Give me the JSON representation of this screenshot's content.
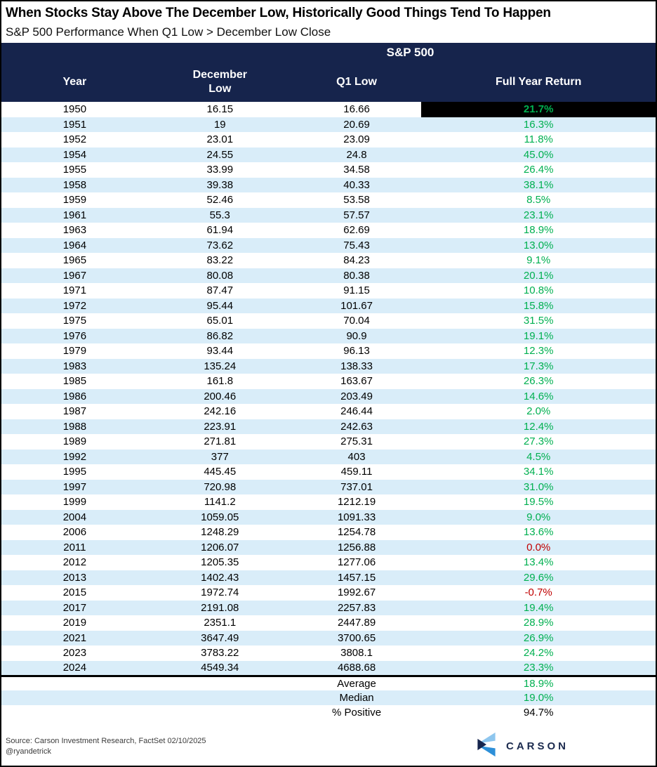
{
  "title": "When Stocks Stay Above The December Low, Historically Good Things Tend To Happen",
  "subtitle": "S&P 500 Performance When Q1 Low > December Low Close",
  "chart_data": {
    "type": "table",
    "group_header": "S&P 500",
    "columns": [
      "Year",
      "December\nLow",
      "Q1 Low",
      "Full Year Return"
    ],
    "rows": [
      {
        "year": "1950",
        "december_low": "16.15",
        "q1_low": "16.66",
        "full_year_return": "21.7%",
        "color": "green",
        "highlight": true
      },
      {
        "year": "1951",
        "december_low": "19",
        "q1_low": "20.69",
        "full_year_return": "16.3%",
        "color": "green"
      },
      {
        "year": "1952",
        "december_low": "23.01",
        "q1_low": "23.09",
        "full_year_return": "11.8%",
        "color": "green"
      },
      {
        "year": "1954",
        "december_low": "24.55",
        "q1_low": "24.8",
        "full_year_return": "45.0%",
        "color": "green"
      },
      {
        "year": "1955",
        "december_low": "33.99",
        "q1_low": "34.58",
        "full_year_return": "26.4%",
        "color": "green"
      },
      {
        "year": "1958",
        "december_low": "39.38",
        "q1_low": "40.33",
        "full_year_return": "38.1%",
        "color": "green"
      },
      {
        "year": "1959",
        "december_low": "52.46",
        "q1_low": "53.58",
        "full_year_return": "8.5%",
        "color": "green"
      },
      {
        "year": "1961",
        "december_low": "55.3",
        "q1_low": "57.57",
        "full_year_return": "23.1%",
        "color": "green"
      },
      {
        "year": "1963",
        "december_low": "61.94",
        "q1_low": "62.69",
        "full_year_return": "18.9%",
        "color": "green"
      },
      {
        "year": "1964",
        "december_low": "73.62",
        "q1_low": "75.43",
        "full_year_return": "13.0%",
        "color": "green"
      },
      {
        "year": "1965",
        "december_low": "83.22",
        "q1_low": "84.23",
        "full_year_return": "9.1%",
        "color": "green"
      },
      {
        "year": "1967",
        "december_low": "80.08",
        "q1_low": "80.38",
        "full_year_return": "20.1%",
        "color": "green"
      },
      {
        "year": "1971",
        "december_low": "87.47",
        "q1_low": "91.15",
        "full_year_return": "10.8%",
        "color": "green"
      },
      {
        "year": "1972",
        "december_low": "95.44",
        "q1_low": "101.67",
        "full_year_return": "15.8%",
        "color": "green"
      },
      {
        "year": "1975",
        "december_low": "65.01",
        "q1_low": "70.04",
        "full_year_return": "31.5%",
        "color": "green"
      },
      {
        "year": "1976",
        "december_low": "86.82",
        "q1_low": "90.9",
        "full_year_return": "19.1%",
        "color": "green"
      },
      {
        "year": "1979",
        "december_low": "93.44",
        "q1_low": "96.13",
        "full_year_return": "12.3%",
        "color": "green"
      },
      {
        "year": "1983",
        "december_low": "135.24",
        "q1_low": "138.33",
        "full_year_return": "17.3%",
        "color": "green"
      },
      {
        "year": "1985",
        "december_low": "161.8",
        "q1_low": "163.67",
        "full_year_return": "26.3%",
        "color": "green"
      },
      {
        "year": "1986",
        "december_low": "200.46",
        "q1_low": "203.49",
        "full_year_return": "14.6%",
        "color": "green"
      },
      {
        "year": "1987",
        "december_low": "242.16",
        "q1_low": "246.44",
        "full_year_return": "2.0%",
        "color": "green"
      },
      {
        "year": "1988",
        "december_low": "223.91",
        "q1_low": "242.63",
        "full_year_return": "12.4%",
        "color": "green"
      },
      {
        "year": "1989",
        "december_low": "271.81",
        "q1_low": "275.31",
        "full_year_return": "27.3%",
        "color": "green"
      },
      {
        "year": "1992",
        "december_low": "377",
        "q1_low": "403",
        "full_year_return": "4.5%",
        "color": "green"
      },
      {
        "year": "1995",
        "december_low": "445.45",
        "q1_low": "459.11",
        "full_year_return": "34.1%",
        "color": "green"
      },
      {
        "year": "1997",
        "december_low": "720.98",
        "q1_low": "737.01",
        "full_year_return": "31.0%",
        "color": "green"
      },
      {
        "year": "1999",
        "december_low": "1141.2",
        "q1_low": "1212.19",
        "full_year_return": "19.5%",
        "color": "green"
      },
      {
        "year": "2004",
        "december_low": "1059.05",
        "q1_low": "1091.33",
        "full_year_return": "9.0%",
        "color": "green"
      },
      {
        "year": "2006",
        "december_low": "1248.29",
        "q1_low": "1254.78",
        "full_year_return": "13.6%",
        "color": "green"
      },
      {
        "year": "2011",
        "december_low": "1206.07",
        "q1_low": "1256.88",
        "full_year_return": "0.0%",
        "color": "red"
      },
      {
        "year": "2012",
        "december_low": "1205.35",
        "q1_low": "1277.06",
        "full_year_return": "13.4%",
        "color": "green"
      },
      {
        "year": "2013",
        "december_low": "1402.43",
        "q1_low": "1457.15",
        "full_year_return": "29.6%",
        "color": "green"
      },
      {
        "year": "2015",
        "december_low": "1972.74",
        "q1_low": "1992.67",
        "full_year_return": "-0.7%",
        "color": "red"
      },
      {
        "year": "2017",
        "december_low": "2191.08",
        "q1_low": "2257.83",
        "full_year_return": "19.4%",
        "color": "green"
      },
      {
        "year": "2019",
        "december_low": "2351.1",
        "q1_low": "2447.89",
        "full_year_return": "28.9%",
        "color": "green"
      },
      {
        "year": "2021",
        "december_low": "3647.49",
        "q1_low": "3700.65",
        "full_year_return": "26.9%",
        "color": "green"
      },
      {
        "year": "2023",
        "december_low": "3783.22",
        "q1_low": "3808.1",
        "full_year_return": "24.2%",
        "color": "green"
      },
      {
        "year": "2024",
        "december_low": "4549.34",
        "q1_low": "4688.68",
        "full_year_return": "23.3%",
        "color": "green"
      }
    ],
    "summary": [
      {
        "label": "Average",
        "value": "18.9%",
        "color": "green"
      },
      {
        "label": "Median",
        "value": "19.0%",
        "color": "green"
      },
      {
        "label": "% Positive",
        "value": "94.7%",
        "color": "black"
      }
    ]
  },
  "footer": {
    "source": "Source: Carson Investment Research, FactSet 02/10/2025",
    "handle": "@ryandetrick",
    "logo_text": "CARSON"
  },
  "colors": {
    "header_navy": "#16244c",
    "stripe_blue": "#d9edf9",
    "positive_green": "#00b050",
    "negative_red": "#c00000",
    "highlight_bg": "#000000",
    "logo_light_blue": "#8ec6ee",
    "logo_mid_blue": "#2d8fd8",
    "logo_navy": "#16254e"
  }
}
